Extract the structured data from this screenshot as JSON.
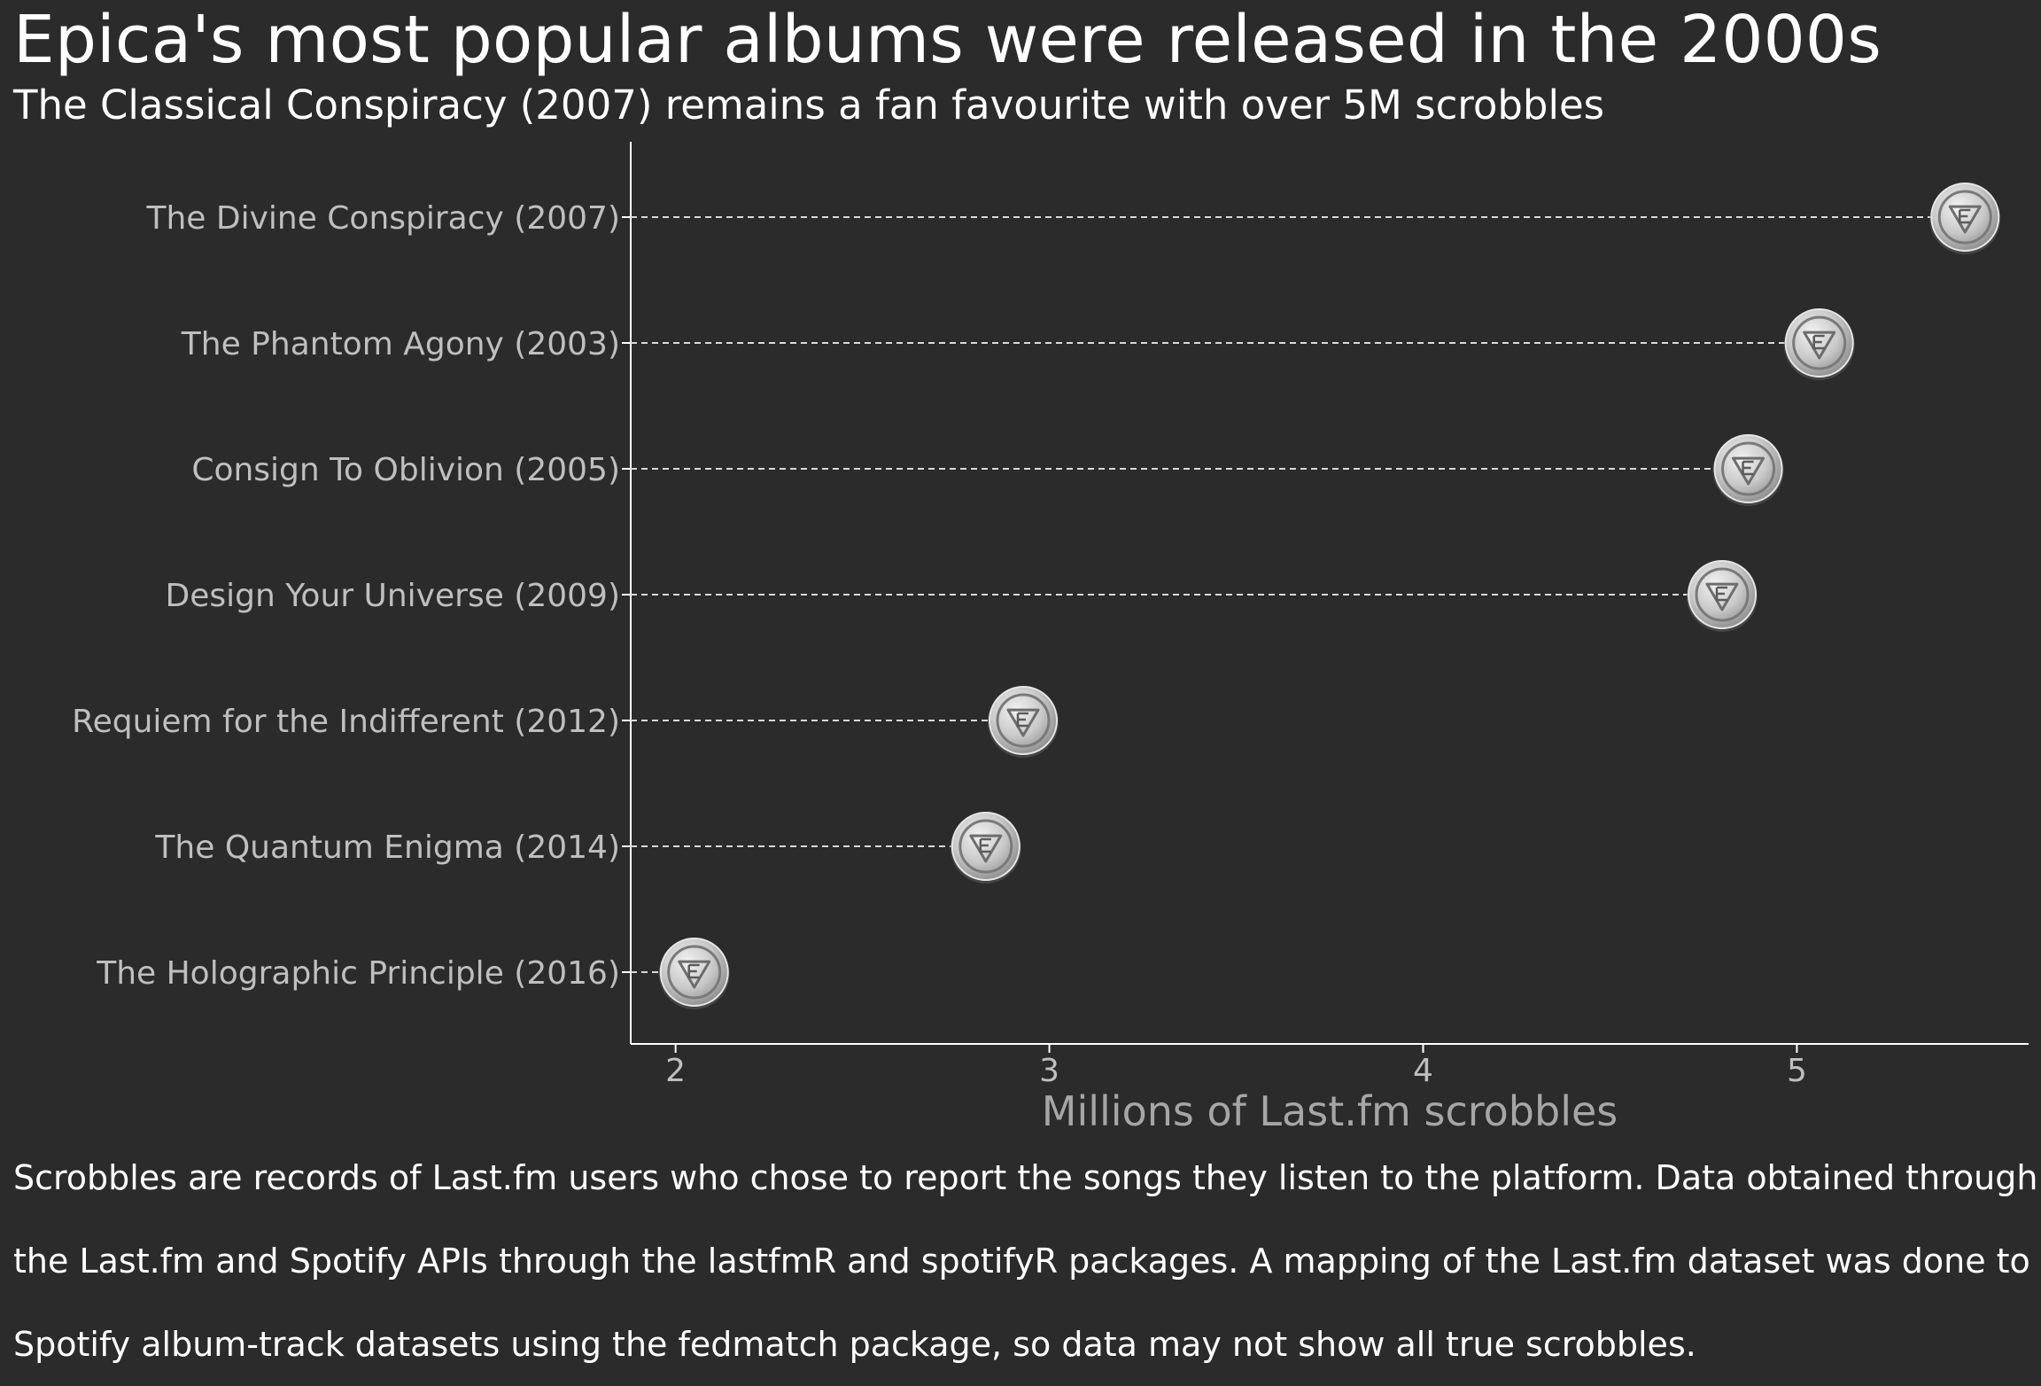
{
  "header": {
    "title": "Epica's most popular albums were released in the 2000s",
    "subtitle": "The Classical Conspiracy (2007) remains a fan favourite with over 5M scrobbles"
  },
  "caption_lines": [
    "Scrobbles are records of Last.fm users who chose to report the songs they listen to the platform. Data obtained through",
    "the Last.fm and Spotify APIs through the lastfmR and spotifyR packages. A mapping of the Last.fm dataset was done to",
    "Spotify album-track datasets using the fedmatch package, so data may not show all true scrobbles."
  ],
  "colors": {
    "background": "#2b2b2b",
    "title_text": "#ffffff",
    "axis_text": "#bfbfbf",
    "axis_title": "#a6a6a6",
    "axis_line": "#ffffff",
    "leader_line": "#d9d9d9",
    "marker": "#c8c8c8"
  },
  "chart_data": {
    "type": "scatter",
    "style": "lollipop",
    "marker_icon": "epica-logo-coin-icon",
    "xlabel": "Millions of Last.fm scrobbles",
    "ylabel": "",
    "xlim": [
      1.88,
      5.62
    ],
    "xticks": [
      2,
      3,
      4,
      5
    ],
    "grid": false,
    "categories": [
      "The Divine Conspiracy (2007)",
      "The Phantom Agony (2003)",
      "Consign To Oblivion (2005)",
      "Design Your Universe (2009)",
      "Requiem for the Indifferent (2012)",
      "The Quantum Enigma (2014)",
      "The Holographic Principle (2016)"
    ],
    "values": [
      5.45,
      5.06,
      4.87,
      4.8,
      2.93,
      2.83,
      2.05
    ]
  }
}
